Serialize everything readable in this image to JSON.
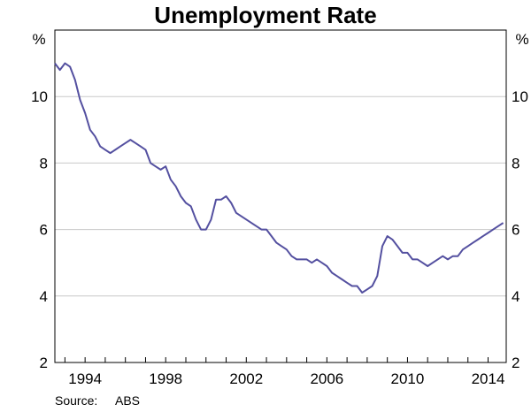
{
  "chart_data": {
    "type": "line",
    "title": "Unemployment Rate",
    "unit_left": "%",
    "unit_right": "%",
    "source_label": "Source:",
    "source_value": "ABS",
    "xlim": [
      1992.5,
      2014.9
    ],
    "ylim": [
      2,
      12
    ],
    "x_ticks": [
      1994,
      1998,
      2002,
      2006,
      2010,
      2014
    ],
    "y_ticks": [
      2,
      4,
      6,
      8,
      10
    ],
    "grid": true,
    "line_color": "#5450a0",
    "series": [
      {
        "x": [
          1992.5,
          1992.75,
          1993.0,
          1993.25,
          1993.5,
          1993.75,
          1994.0,
          1994.25,
          1994.5,
          1994.75,
          1995.0,
          1995.25,
          1995.5,
          1995.75,
          1996.0,
          1996.25,
          1996.5,
          1996.75,
          1997.0,
          1997.25,
          1997.5,
          1997.75,
          1998.0,
          1998.25,
          1998.5,
          1998.75,
          1999.0,
          1999.25,
          1999.5,
          1999.75,
          2000.0,
          2000.25,
          2000.5,
          2000.75,
          2001.0,
          2001.25,
          2001.5,
          2001.75,
          2002.0,
          2002.25,
          2002.5,
          2002.75,
          2003.0,
          2003.25,
          2003.5,
          2003.75,
          2004.0,
          2004.25,
          2004.5,
          2004.75,
          2005.0,
          2005.25,
          2005.5,
          2005.75,
          2006.0,
          2006.25,
          2006.5,
          2006.75,
          2007.0,
          2007.25,
          2007.5,
          2007.75,
          2008.0,
          2008.25,
          2008.5,
          2008.75,
          2009.0,
          2009.25,
          2009.5,
          2009.75,
          2010.0,
          2010.25,
          2010.5,
          2010.75,
          2011.0,
          2011.25,
          2011.5,
          2011.75,
          2012.0,
          2012.25,
          2012.5,
          2012.75,
          2013.0,
          2013.25,
          2013.5,
          2013.75,
          2014.0,
          2014.25,
          2014.5,
          2014.75
        ],
        "values": [
          11.0,
          10.8,
          11.0,
          10.9,
          10.5,
          9.9,
          9.5,
          9.0,
          8.8,
          8.5,
          8.4,
          8.3,
          8.4,
          8.5,
          8.6,
          8.7,
          8.6,
          8.5,
          8.4,
          8.0,
          7.9,
          7.8,
          7.9,
          7.5,
          7.3,
          7.0,
          6.8,
          6.7,
          6.3,
          6.0,
          6.0,
          6.3,
          6.9,
          6.9,
          7.0,
          6.8,
          6.5,
          6.4,
          6.3,
          6.2,
          6.1,
          6.0,
          6.0,
          5.8,
          5.6,
          5.5,
          5.4,
          5.2,
          5.1,
          5.1,
          5.1,
          5.0,
          5.1,
          5.0,
          4.9,
          4.7,
          4.6,
          4.5,
          4.4,
          4.3,
          4.3,
          4.1,
          4.2,
          4.3,
          4.6,
          5.5,
          5.8,
          5.7,
          5.5,
          5.3,
          5.3,
          5.1,
          5.1,
          5.0,
          4.9,
          5.0,
          5.1,
          5.2,
          5.1,
          5.2,
          5.2,
          5.4,
          5.5,
          5.6,
          5.7,
          5.8,
          5.9,
          6.0,
          6.1,
          6.2
        ]
      }
    ]
  }
}
